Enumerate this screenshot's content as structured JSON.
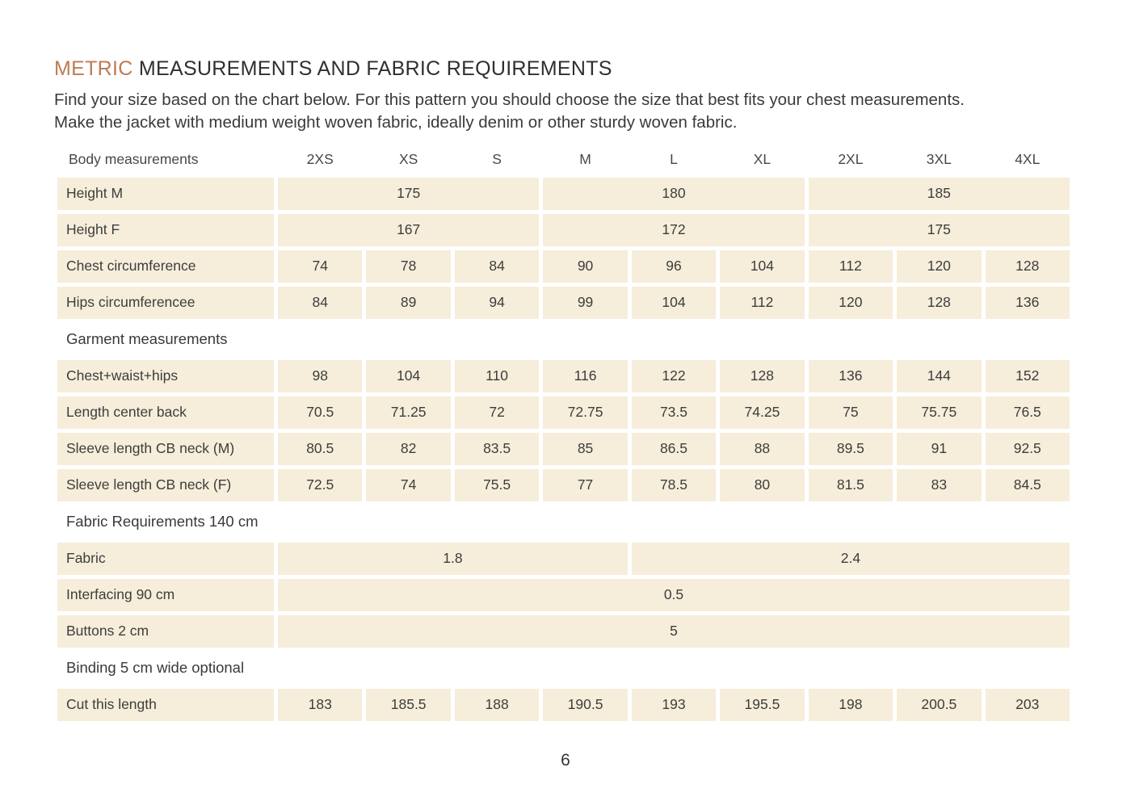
{
  "page": {
    "title_accent": "METRIC",
    "title_rest": "MEASUREMENTS AND FABRIC REQUIREMENTS",
    "intro": "Find your size based on the chart below. For this pattern you should choose the size that best fits your chest measurements. Make the jacket with medium weight woven fabric, ideally denim or other sturdy woven fabric.",
    "page_number": "6"
  },
  "colors": {
    "accent": "#c07a51",
    "cell_bg": "#f6eeda",
    "text": "#3d3d3d"
  },
  "table": {
    "rows": [
      {
        "type": "header",
        "label": "Body measurements",
        "cells": [
          {
            "text": "2XS"
          },
          {
            "text": "XS"
          },
          {
            "text": "S"
          },
          {
            "text": "M"
          },
          {
            "text": "L"
          },
          {
            "text": "XL"
          },
          {
            "text": "2XL"
          },
          {
            "text": "3XL"
          },
          {
            "text": "4XL"
          }
        ]
      },
      {
        "type": "data",
        "label": "Height M",
        "cells": [
          {
            "text": "175",
            "span": 3
          },
          {
            "text": "180",
            "span": 3
          },
          {
            "text": "185",
            "span": 3
          }
        ]
      },
      {
        "type": "data",
        "label": "Height F",
        "cells": [
          {
            "text": "167",
            "span": 3
          },
          {
            "text": "172",
            "span": 3
          },
          {
            "text": "175",
            "span": 3
          }
        ]
      },
      {
        "type": "data",
        "label": "Chest circumference",
        "cells": [
          {
            "text": "74"
          },
          {
            "text": "78"
          },
          {
            "text": "84"
          },
          {
            "text": "90"
          },
          {
            "text": "96"
          },
          {
            "text": "104"
          },
          {
            "text": "112"
          },
          {
            "text": "120"
          },
          {
            "text": "128"
          }
        ]
      },
      {
        "type": "data",
        "label": "Hips circumferencee",
        "cells": [
          {
            "text": "84"
          },
          {
            "text": "89"
          },
          {
            "text": "94"
          },
          {
            "text": "99"
          },
          {
            "text": "104"
          },
          {
            "text": "112"
          },
          {
            "text": "120"
          },
          {
            "text": "128"
          },
          {
            "text": "136"
          }
        ]
      },
      {
        "type": "section",
        "label": "Garment measurements"
      },
      {
        "type": "data",
        "label": "Chest+waist+hips",
        "cells": [
          {
            "text": "98"
          },
          {
            "text": "104"
          },
          {
            "text": "110"
          },
          {
            "text": "116"
          },
          {
            "text": "122"
          },
          {
            "text": "128"
          },
          {
            "text": "136"
          },
          {
            "text": "144"
          },
          {
            "text": "152"
          }
        ]
      },
      {
        "type": "data",
        "label": "Length center back",
        "cells": [
          {
            "text": "70.5"
          },
          {
            "text": "71.25"
          },
          {
            "text": "72"
          },
          {
            "text": "72.75"
          },
          {
            "text": "73.5"
          },
          {
            "text": "74.25"
          },
          {
            "text": "75"
          },
          {
            "text": "75.75"
          },
          {
            "text": "76.5"
          }
        ]
      },
      {
        "type": "data",
        "label": "Sleeve length CB neck (M)",
        "cells": [
          {
            "text": "80.5"
          },
          {
            "text": "82"
          },
          {
            "text": "83.5"
          },
          {
            "text": "85"
          },
          {
            "text": "86.5"
          },
          {
            "text": "88"
          },
          {
            "text": "89.5"
          },
          {
            "text": "91"
          },
          {
            "text": "92.5"
          }
        ]
      },
      {
        "type": "data",
        "label": "Sleeve length CB neck (F)",
        "cells": [
          {
            "text": "72.5"
          },
          {
            "text": "74"
          },
          {
            "text": "75.5"
          },
          {
            "text": "77"
          },
          {
            "text": "78.5"
          },
          {
            "text": "80"
          },
          {
            "text": "81.5"
          },
          {
            "text": "83"
          },
          {
            "text": "84.5"
          }
        ]
      },
      {
        "type": "section",
        "label": "Fabric Requirements 140 cm"
      },
      {
        "type": "data",
        "label": "Fabric",
        "cells": [
          {
            "text": "1.8",
            "span": 4
          },
          {
            "text": "2.4",
            "span": 5
          }
        ]
      },
      {
        "type": "data",
        "label": "Interfacing 90 cm",
        "cells": [
          {
            "text": "0.5",
            "span": 9
          }
        ]
      },
      {
        "type": "data",
        "label": "Buttons 2 cm",
        "cells": [
          {
            "text": "5",
            "span": 9
          }
        ]
      },
      {
        "type": "section",
        "label": "Binding 5 cm wide optional"
      },
      {
        "type": "data",
        "label": "Cut this length",
        "cells": [
          {
            "text": "183"
          },
          {
            "text": "185.5"
          },
          {
            "text": "188"
          },
          {
            "text": "190.5"
          },
          {
            "text": "193"
          },
          {
            "text": "195.5"
          },
          {
            "text": "198"
          },
          {
            "text": "200.5"
          },
          {
            "text": "203"
          }
        ]
      }
    ]
  }
}
